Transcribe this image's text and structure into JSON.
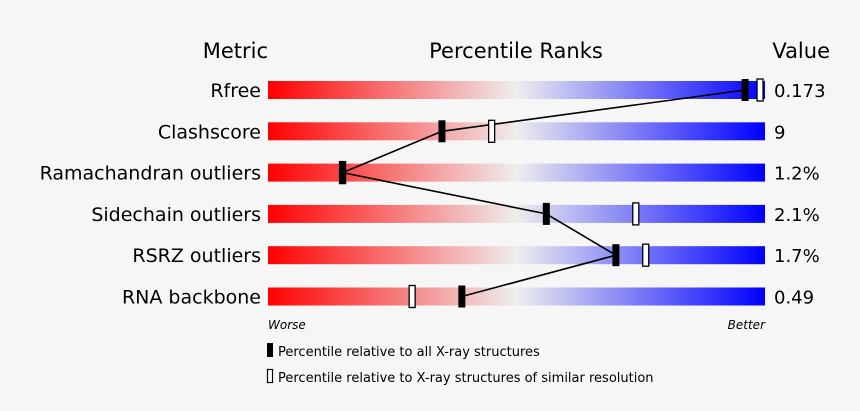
{
  "chart_data": {
    "type": "bar",
    "headers": {
      "metric": "Metric",
      "percentile": "Percentile Ranks",
      "value": "Value"
    },
    "metrics": [
      {
        "name": "Rfree",
        "value": "0.173",
        "percentile_all": 96,
        "percentile_similar": 99
      },
      {
        "name": "Clashscore",
        "value": "9",
        "percentile_all": 35,
        "percentile_similar": 45
      },
      {
        "name": "Ramachandran outliers",
        "value": "1.2%",
        "percentile_all": 15,
        "percentile_similar": 15
      },
      {
        "name": "Sidechain outliers",
        "value": "2.1%",
        "percentile_all": 56,
        "percentile_similar": 74
      },
      {
        "name": "RSRZ outliers",
        "value": "1.7%",
        "percentile_all": 70,
        "percentile_similar": 76
      },
      {
        "name": "RNA backbone",
        "value": "0.49",
        "percentile_all": 39,
        "percentile_similar": 29
      }
    ],
    "axis": {
      "left_label": "Worse",
      "right_label": "Better",
      "xlim": [
        0,
        100
      ]
    },
    "legend": [
      {
        "marker": "filled",
        "label": "Percentile relative to all X-ray structures"
      },
      {
        "marker": "open",
        "label": "Percentile relative to X-ray structures of similar resolution"
      }
    ],
    "colors": {
      "worse": "#ff0000",
      "middle": "#eeeeee",
      "better": "#0000ff",
      "marker": "#000000",
      "background": "#f6f6f6"
    }
  }
}
